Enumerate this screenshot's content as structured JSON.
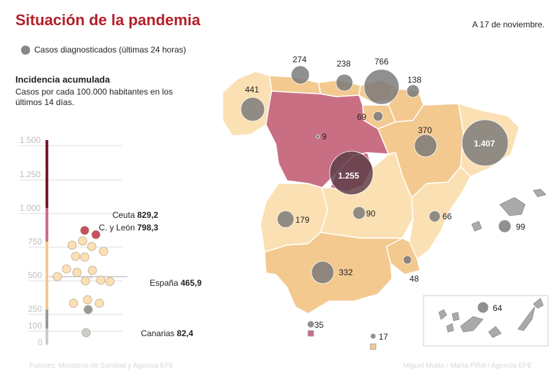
{
  "title": "Situación de la pandemia",
  "date": "A 17 de noviembre.",
  "legend": {
    "label": "Casos diagnosticados (últimas 24 horas)"
  },
  "incidence": {
    "title": "Incidencia acumulada",
    "subtitle": "Casos por cada 100.000 habitantes en los últimos 14 días.",
    "ticks": [
      "1.500",
      "1.250",
      "1.000",
      "750",
      "500",
      "250",
      "100",
      "0"
    ],
    "annotations": [
      {
        "name": "Ceuta",
        "value": "829,2"
      },
      {
        "name": "C. y León",
        "value": "798,3"
      },
      {
        "name": "España",
        "value": "465,9"
      },
      {
        "name": "Canarias",
        "value": "82,4"
      }
    ]
  },
  "regions": [
    {
      "name": "Galicia",
      "cases": "441"
    },
    {
      "name": "Asturias",
      "cases": "274"
    },
    {
      "name": "Cantabria",
      "cases": "238"
    },
    {
      "name": "País Vasco",
      "cases": "766"
    },
    {
      "name": "Navarra",
      "cases": "138"
    },
    {
      "name": "La Rioja",
      "cases": "69"
    },
    {
      "name": "Castilla y León",
      "cases": "9"
    },
    {
      "name": "Aragón",
      "cases": "370"
    },
    {
      "name": "Cataluña",
      "cases": "1.407"
    },
    {
      "name": "Madrid",
      "cases": "1.255"
    },
    {
      "name": "Extremadura",
      "cases": "179"
    },
    {
      "name": "Castilla-La Mancha",
      "cases": "90"
    },
    {
      "name": "C. Valenciana",
      "cases": "66"
    },
    {
      "name": "Baleares",
      "cases": "99"
    },
    {
      "name": "Andalucía",
      "cases": "332"
    },
    {
      "name": "Murcia",
      "cases": "48"
    },
    {
      "name": "Canarias",
      "cases": "64"
    },
    {
      "name": "Ceuta",
      "cases": "35"
    },
    {
      "name": "Melilla",
      "cases": "17"
    }
  ],
  "sources": "Fuentes: Ministerio de Sanidad y Agencia EFE",
  "credits": "Miguel Mulas / Marta Piñol / Agencia EFE",
  "colors": {
    "title": "#b2202a",
    "bubble": "#777777",
    "level_low": "#fbe6c8",
    "level_mid": "#f3c98f",
    "level_high": "#c96f84",
    "level_top": "#7a1a2c"
  }
}
